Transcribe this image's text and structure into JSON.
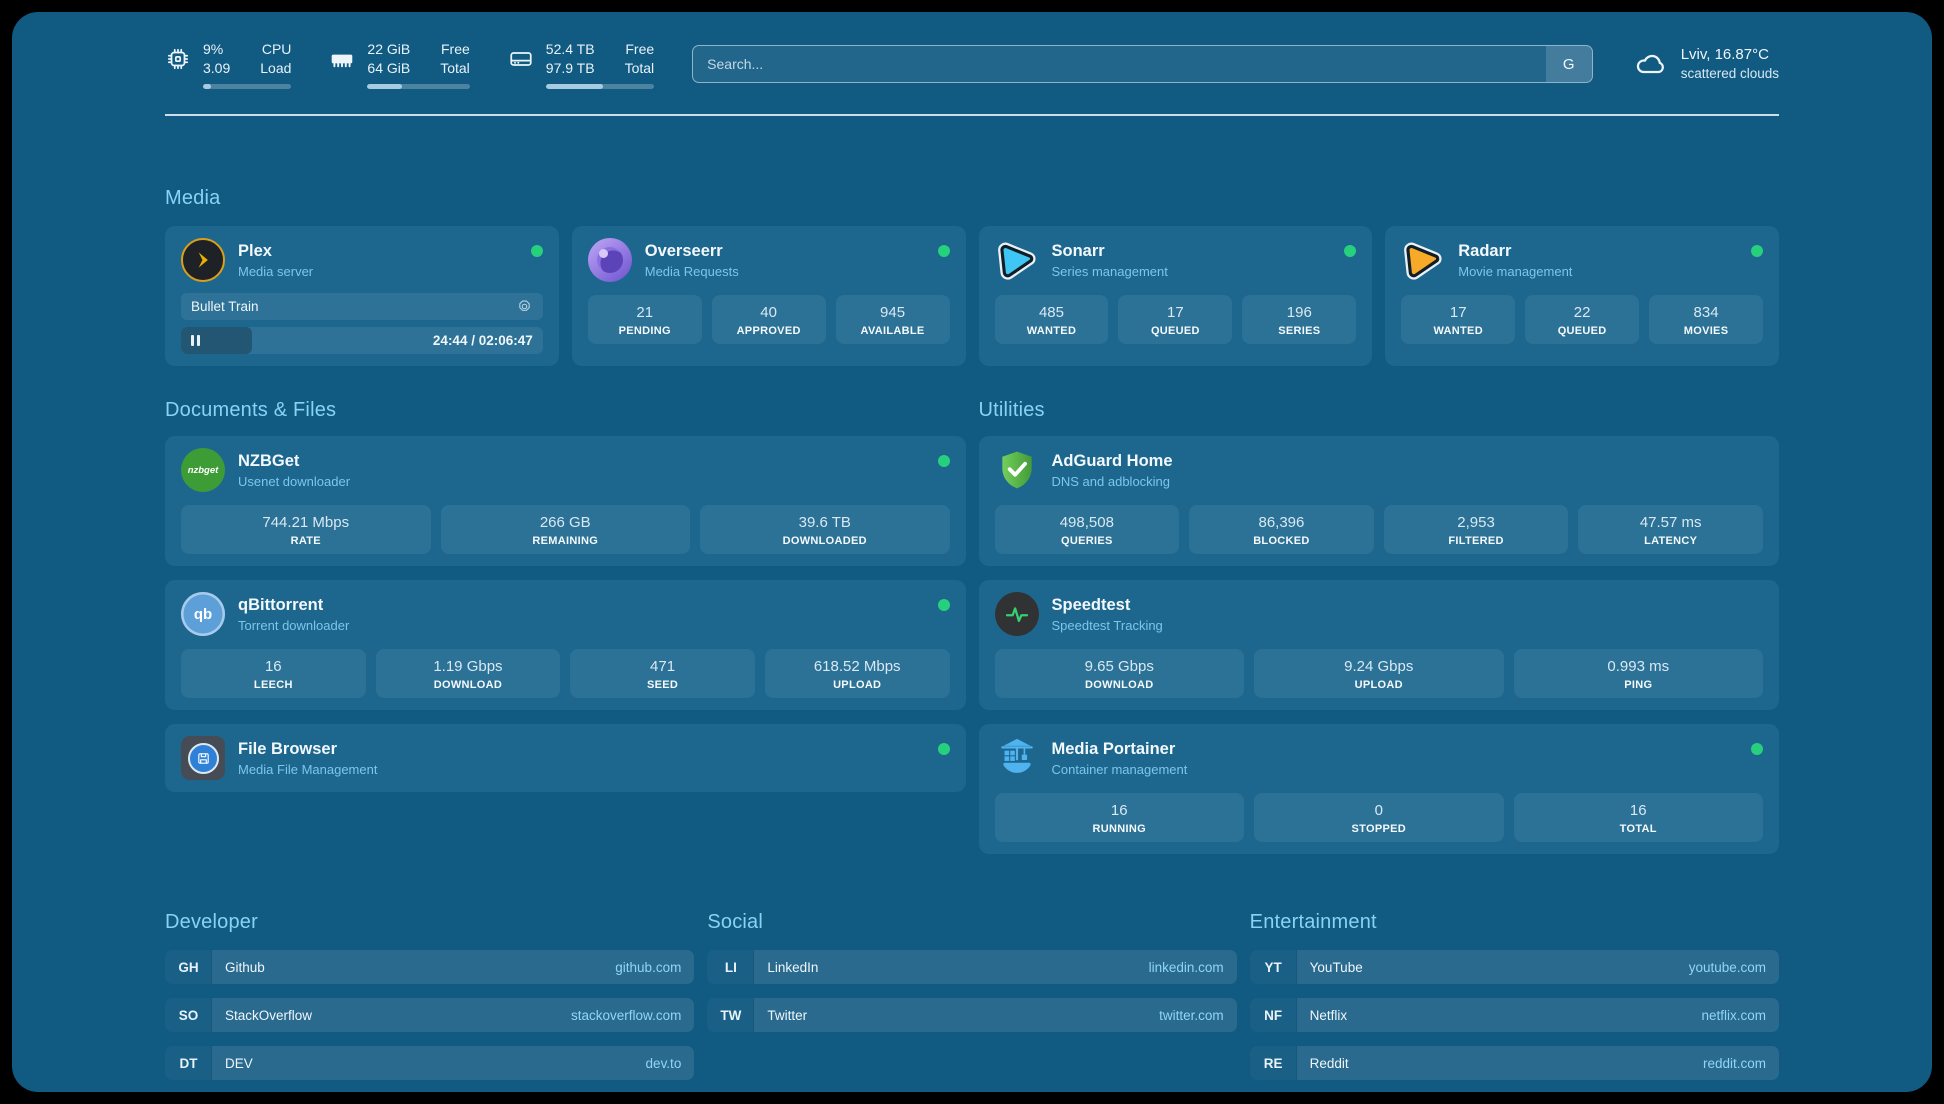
{
  "header": {
    "system_stats": [
      {
        "id": "cpu",
        "value_top": "9%",
        "value_bottom": "3.09",
        "label_top": "CPU",
        "label_bottom": "Load",
        "progress_pct": 9
      },
      {
        "id": "memory",
        "value_top": "22 GiB",
        "value_bottom": "64 GiB",
        "label_top": "Free",
        "label_bottom": "Total",
        "progress_pct": 34
      },
      {
        "id": "disk",
        "value_top": "52.4 TB",
        "value_bottom": "97.9 TB",
        "label_top": "Free",
        "label_bottom": "Total",
        "progress_pct": 53
      }
    ],
    "search": {
      "placeholder": "Search...",
      "engine_button": "G"
    },
    "weather": {
      "location": "Lviv, 16.87°C",
      "condition": "scattered clouds"
    }
  },
  "sections": {
    "media": {
      "title": "Media",
      "plex": {
        "name": "Plex",
        "subtitle": "Media server",
        "status": "online",
        "now_playing": "Bullet Train",
        "time_display": "24:44 / 02:06:47",
        "progress_pct": 19.5
      },
      "overseerr": {
        "name": "Overseerr",
        "subtitle": "Media Requests",
        "status": "online",
        "stats": [
          {
            "value": "21",
            "label": "PENDING"
          },
          {
            "value": "40",
            "label": "APPROVED"
          },
          {
            "value": "945",
            "label": "AVAILABLE"
          }
        ]
      },
      "sonarr": {
        "name": "Sonarr",
        "subtitle": "Series management",
        "status": "online",
        "stats": [
          {
            "value": "485",
            "label": "WANTED"
          },
          {
            "value": "17",
            "label": "QUEUED"
          },
          {
            "value": "196",
            "label": "SERIES"
          }
        ]
      },
      "radarr": {
        "name": "Radarr",
        "subtitle": "Movie management",
        "status": "online",
        "stats": [
          {
            "value": "17",
            "label": "WANTED"
          },
          {
            "value": "22",
            "label": "QUEUED"
          },
          {
            "value": "834",
            "label": "MOVIES"
          }
        ]
      }
    },
    "documents": {
      "title": "Documents & Files",
      "nzbget": {
        "name": "NZBGet",
        "subtitle": "Usenet downloader",
        "status": "online",
        "icon_text": "nzbget",
        "stats": [
          {
            "value": "744.21 Mbps",
            "label": "RATE"
          },
          {
            "value": "266 GB",
            "label": "REMAINING"
          },
          {
            "value": "39.6 TB",
            "label": "DOWNLOADED"
          }
        ]
      },
      "qbittorrent": {
        "name": "qBittorrent",
        "subtitle": "Torrent downloader",
        "status": "online",
        "icon_text": "qb",
        "stats": [
          {
            "value": "16",
            "label": "LEECH"
          },
          {
            "value": "1.19 Gbps",
            "label": "DOWNLOAD"
          },
          {
            "value": "471",
            "label": "SEED"
          },
          {
            "value": "618.52 Mbps",
            "label": "UPLOAD"
          }
        ]
      },
      "filebrowser": {
        "name": "File Browser",
        "subtitle": "Media File Management",
        "status": "online"
      }
    },
    "utilities": {
      "title": "Utilities",
      "adguard": {
        "name": "AdGuard Home",
        "subtitle": "DNS and adblocking",
        "stats": [
          {
            "value": "498,508",
            "label": "QUERIES"
          },
          {
            "value": "86,396",
            "label": "BLOCKED"
          },
          {
            "value": "2,953",
            "label": "FILTERED"
          },
          {
            "value": "47.57 ms",
            "label": "LATENCY"
          }
        ]
      },
      "speedtest": {
        "name": "Speedtest",
        "subtitle": "Speedtest Tracking",
        "stats": [
          {
            "value": "9.65 Gbps",
            "label": "DOWNLOAD"
          },
          {
            "value": "9.24 Gbps",
            "label": "UPLOAD"
          },
          {
            "value": "0.993 ms",
            "label": "PING"
          }
        ]
      },
      "portainer": {
        "name": "Media Portainer",
        "subtitle": "Container management",
        "status": "online",
        "stats": [
          {
            "value": "16",
            "label": "RUNNING"
          },
          {
            "value": "0",
            "label": "STOPPED"
          },
          {
            "value": "16",
            "label": "TOTAL"
          }
        ]
      }
    }
  },
  "bookmarks": {
    "developer": {
      "title": "Developer",
      "items": [
        {
          "abbr": "GH",
          "name": "Github",
          "url": "github.com"
        },
        {
          "abbr": "SO",
          "name": "StackOverflow",
          "url": "stackoverflow.com"
        },
        {
          "abbr": "DT",
          "name": "DEV",
          "url": "dev.to"
        }
      ]
    },
    "social": {
      "title": "Social",
      "items": [
        {
          "abbr": "LI",
          "name": "LinkedIn",
          "url": "linkedin.com"
        },
        {
          "abbr": "TW",
          "name": "Twitter",
          "url": "twitter.com"
        }
      ]
    },
    "entertainment": {
      "title": "Entertainment",
      "items": [
        {
          "abbr": "YT",
          "name": "YouTube",
          "url": "youtube.com"
        },
        {
          "abbr": "NF",
          "name": "Netflix",
          "url": "netflix.com"
        },
        {
          "abbr": "RE",
          "name": "Reddit",
          "url": "reddit.com"
        }
      ]
    }
  },
  "colors": {
    "page_bg": "#115A82",
    "card_bg": "#1D678F",
    "accent_heading": "#87D3F4",
    "status_online": "#27D07C",
    "link": "#90D5F6",
    "plex_gold": "#EBAF00"
  }
}
